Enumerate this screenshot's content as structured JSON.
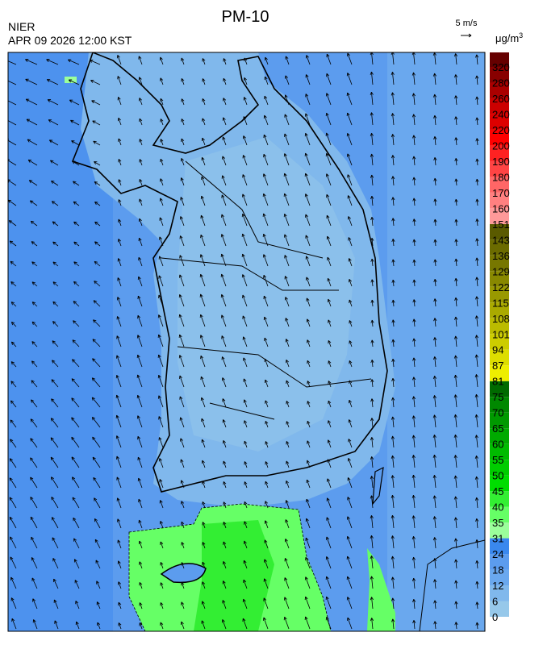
{
  "header": {
    "title": "PM-10",
    "agency": "NIER",
    "datetime": "APR 09 2026 12:00 KST",
    "wind_scale": "5 m/s"
  },
  "legend": {
    "unit": {
      "base": "μg/m",
      "sup": "3"
    },
    "labels": [
      0,
      6,
      12,
      18,
      24,
      31,
      35,
      40,
      45,
      50,
      55,
      60,
      65,
      70,
      75,
      81,
      87,
      94,
      101,
      108,
      115,
      122,
      129,
      136,
      143,
      151,
      160,
      170,
      180,
      190,
      200,
      220,
      240,
      260,
      280,
      320
    ],
    "colors": [
      "#96c8ea",
      "#80b8ec",
      "#6aa8ee",
      "#5c9cee",
      "#3a88ee",
      "#9bff9b",
      "#66ff66",
      "#33ee33",
      "#00dd00",
      "#00cc00",
      "#00bb00",
      "#00aa00",
      "#009900",
      "#008800",
      "#006a00",
      "#eeee00",
      "#dddd00",
      "#cccc00",
      "#bbbb00",
      "#aaaa00",
      "#999900",
      "#888800",
      "#777700",
      "#6b6b00",
      "#5a5a00",
      "#ff9999",
      "#ff8080",
      "#ff6666",
      "#ff4444",
      "#ff2222",
      "#ff0000",
      "#dd0000",
      "#cc0000",
      "#aa0000",
      "#880000",
      "#660000"
    ]
  }
}
